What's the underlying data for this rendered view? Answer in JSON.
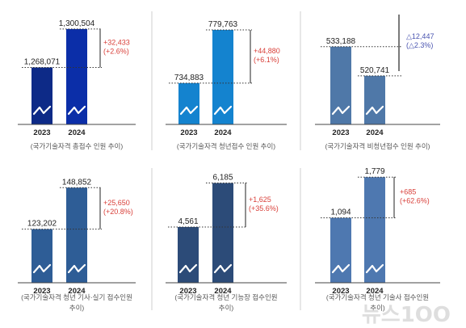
{
  "colors": {
    "increase": "#d9403a",
    "decrease": "#4a54b0",
    "axis": "#444444",
    "divider": "#cfcfcf",
    "dotted": "#333333",
    "caption": "#555555",
    "bar_2023_panel1": "#0d2a87",
    "bar_2024_panel1": "#0b2ea8",
    "bar_panel2": "#1483cf",
    "bar_panel3": "#4f78a8",
    "bar_panel4": "#2e5d96",
    "bar_panel5": "#2c4b78",
    "bar_panel6": "#4e78b0"
  },
  "watermark": "뉴스1OO",
  "chart_data": [
    {
      "type": "bar",
      "categories": [
        "2023",
        "2024"
      ],
      "values": [
        1268071,
        1300504
      ],
      "value_labels": [
        "1,268,071",
        "1,300,504"
      ],
      "diff_lines": [
        "+32,433",
        "(+2.6%)"
      ],
      "diff_color": "increase",
      "caption_lines": [
        "(국가기술자격 총접수 인원 추이)"
      ],
      "ylim": [
        1220000,
        1310000
      ],
      "axis_break": true
    },
    {
      "type": "bar",
      "categories": [
        "2023",
        "2024"
      ],
      "values": [
        734883,
        779763
      ],
      "value_labels": [
        "734,883",
        "779,763"
      ],
      "diff_lines": [
        "+44,880",
        "(+6.1%)"
      ],
      "diff_color": "increase",
      "caption_lines": [
        "(국가기술자격 청년접수 인원 추이)"
      ],
      "ylim": [
        700000,
        790000
      ],
      "axis_break": true
    },
    {
      "type": "bar",
      "categories": [
        "2023",
        "2024"
      ],
      "values": [
        533188,
        520741
      ],
      "value_labels": [
        "533,188",
        "520,741"
      ],
      "diff_lines": [
        "△12,447",
        "(△2.3%)"
      ],
      "diff_color": "decrease",
      "caption_lines": [
        "(국가기술자격 비청년접수 인원 추이)"
      ],
      "ylim": [
        500000,
        540000
      ],
      "axis_break": true
    },
    {
      "type": "bar",
      "categories": [
        "2023",
        "2024"
      ],
      "values": [
        123202,
        148852
      ],
      "value_labels": [
        "123,202",
        "148,852"
      ],
      "diff_lines": [
        "+25,650",
        "(+20.8%)"
      ],
      "diff_color": "increase",
      "caption_lines": [
        "(국가기술자격 청년 기사·실기 접수인원",
        "추이)"
      ],
      "ylim": [
        90000,
        155000
      ],
      "axis_break": true
    },
    {
      "type": "bar",
      "categories": [
        "2023",
        "2024"
      ],
      "values": [
        4561,
        6185
      ],
      "value_labels": [
        "4,561",
        "6,185"
      ],
      "diff_lines": [
        "+1,625",
        "(+35.6%)"
      ],
      "diff_color": "increase",
      "caption_lines": [
        "(국가기술자격 청년 기능장 접수인원",
        "추이)"
      ],
      "ylim": [
        2500,
        6500
      ],
      "axis_break": true
    },
    {
      "type": "bar",
      "categories": [
        "2023",
        "2024"
      ],
      "values": [
        1094,
        1779
      ],
      "value_labels": [
        "1,094",
        "1,779"
      ],
      "diff_lines": [
        "+685",
        "(+62.6%)"
      ],
      "diff_color": "increase",
      "caption_lines": [
        "(국가기술자격 청년 기술사 접수인원",
        "추이)"
      ],
      "ylim": [
        0,
        1850
      ],
      "axis_break": true
    }
  ]
}
